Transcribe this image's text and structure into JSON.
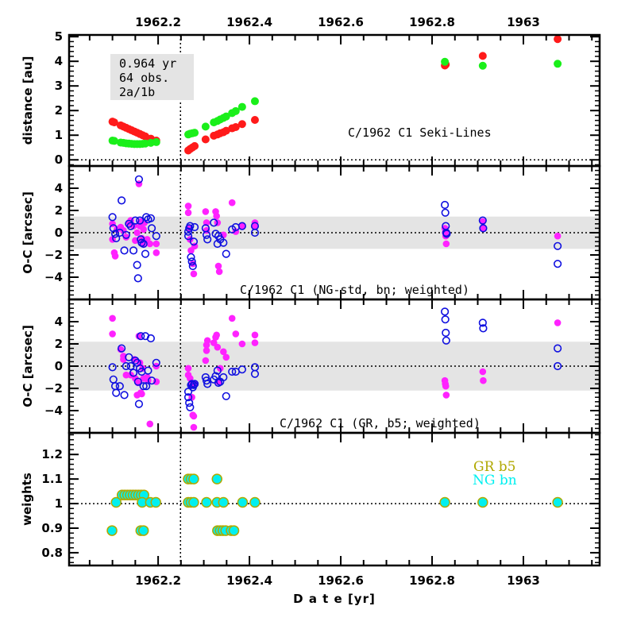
{
  "colors": {
    "red": "#ff1a1a",
    "green": "#1aef1a",
    "magenta": "#ff22ff",
    "blue": "#1010e0",
    "cyan": "#00f0f0",
    "olive": "#b0a800",
    "band": "#e4e4e4"
  },
  "x_axis": {
    "title": "D a t e [yr]",
    "range": [
      1962.005,
      1963.167
    ],
    "tick_labels": [
      "1962.2",
      "1962.4",
      "1962.6",
      "1962.8",
      "1963"
    ],
    "tick_values": [
      1962.2,
      1962.4,
      1962.6,
      1962.8,
      1963.0
    ],
    "minor_step": 0.05,
    "perihelion_line": 1962.249
  },
  "chart_data": [
    {
      "type": "scatter",
      "panel": "distance",
      "ylabel": "distance [au]",
      "ylim": [
        -0.25,
        5.07
      ],
      "yticks": [
        0,
        1,
        2,
        3,
        4,
        5
      ],
      "ytick_labels": [
        "0",
        "1",
        "2",
        "3",
        "4",
        "5"
      ],
      "hline": 0,
      "title": "C/1962 C1 Seki-Lines",
      "info_box": [
        "0.964 yr",
        "64 obs.",
        "2a/1b"
      ],
      "series": [
        {
          "name": "red",
          "x": [
            1962.1,
            1962.104,
            1962.118,
            1962.124,
            1962.13,
            1962.136,
            1962.142,
            1962.148,
            1962.154,
            1962.16,
            1962.166,
            1962.172,
            1962.184,
            1962.196,
            1962.266,
            1962.27,
            1962.275,
            1962.28,
            1962.304,
            1962.322,
            1962.33,
            1962.336,
            1962.343,
            1962.349,
            1962.362,
            1962.37,
            1962.384,
            1962.412,
            1962.828,
            1962.83,
            1962.911,
            1963.075
          ],
          "y": [
            1.55,
            1.52,
            1.4,
            1.35,
            1.3,
            1.25,
            1.2,
            1.15,
            1.1,
            1.05,
            1.0,
            0.95,
            0.86,
            0.78,
            0.38,
            0.44,
            0.5,
            0.56,
            0.83,
            0.98,
            1.03,
            1.08,
            1.12,
            1.18,
            1.28,
            1.33,
            1.45,
            1.62,
            3.83,
            3.87,
            4.22,
            4.9
          ]
        },
        {
          "name": "green",
          "x": [
            1962.1,
            1962.104,
            1962.118,
            1962.124,
            1962.13,
            1962.136,
            1962.142,
            1962.148,
            1962.154,
            1962.16,
            1962.166,
            1962.172,
            1962.184,
            1962.196,
            1962.266,
            1962.27,
            1962.275,
            1962.28,
            1962.304,
            1962.322,
            1962.33,
            1962.336,
            1962.343,
            1962.349,
            1962.362,
            1962.37,
            1962.384,
            1962.412,
            1962.828,
            1962.911,
            1963.075
          ],
          "y": [
            0.78,
            0.77,
            0.7,
            0.69,
            0.67,
            0.66,
            0.65,
            0.64,
            0.64,
            0.64,
            0.65,
            0.66,
            0.69,
            0.72,
            1.03,
            1.06,
            1.08,
            1.1,
            1.35,
            1.52,
            1.58,
            1.64,
            1.7,
            1.76,
            1.9,
            1.98,
            2.15,
            2.38,
            3.98,
            3.82,
            3.9
          ]
        }
      ]
    },
    {
      "type": "scatter",
      "panel": "oc-ng",
      "ylabel": "O-C [arcsec]",
      "ylim": [
        -6,
        6
      ],
      "yticks": [
        -4,
        -2,
        0,
        2,
        4
      ],
      "ytick_labels": [
        "-4",
        "-2",
        "0",
        "2",
        "4"
      ],
      "band": 1.45,
      "hline": 0,
      "title": "C/1962 C1  (NG-std, bn; weighted)",
      "series": [
        {
          "name": "magenta",
          "x": [
            1962.1,
            1962.1,
            1962.104,
            1962.106,
            1962.11,
            1962.118,
            1962.124,
            1962.13,
            1962.136,
            1962.14,
            1962.146,
            1962.15,
            1962.154,
            1962.158,
            1962.16,
            1962.162,
            1962.164,
            1962.166,
            1962.168,
            1962.17,
            1962.176,
            1962.182,
            1962.196,
            1962.196,
            1962.266,
            1962.266,
            1962.268,
            1962.27,
            1962.272,
            1962.276,
            1962.278,
            1962.28,
            1962.304,
            1962.306,
            1962.306,
            1962.326,
            1962.328,
            1962.33,
            1962.332,
            1962.334,
            1962.343,
            1962.362,
            1962.37,
            1962.384,
            1962.412,
            1962.412,
            1962.828,
            1962.829,
            1962.83,
            1962.831,
            1962.911,
            1962.912,
            1963.075
          ],
          "y": [
            0.8,
            -0.6,
            -1.8,
            -2.1,
            0.3,
            0.5,
            0.2,
            -0.4,
            0.9,
            1.1,
            0.6,
            -0.7,
            0.0,
            4.4,
            0.6,
            1.0,
            -0.5,
            -1.0,
            0.3,
            0.9,
            -0.6,
            -1.0,
            -1.0,
            -1.8,
            2.4,
            1.8,
            0.4,
            -0.6,
            -1.6,
            -2.8,
            -3.7,
            -1.2,
            1.9,
            0.9,
            0.2,
            1.9,
            1.5,
            0.9,
            -3.0,
            -3.5,
            -0.2,
            2.7,
            0.1,
            0.6,
            0.6,
            0.9,
            0.4,
            0.0,
            -0.3,
            -1.0,
            1.0,
            0.4,
            -0.3
          ]
        },
        {
          "name": "blue",
          "x": [
            1962.1,
            1962.102,
            1962.106,
            1962.108,
            1962.116,
            1962.12,
            1962.126,
            1962.13,
            1962.136,
            1962.14,
            1962.146,
            1962.15,
            1962.154,
            1962.156,
            1962.158,
            1962.16,
            1962.162,
            1962.164,
            1962.168,
            1962.172,
            1962.174,
            1962.178,
            1962.184,
            1962.186,
            1962.196,
            1962.266,
            1962.266,
            1962.268,
            1962.27,
            1962.272,
            1962.274,
            1962.276,
            1962.278,
            1962.28,
            1962.304,
            1962.306,
            1962.308,
            1962.322,
            1962.326,
            1962.33,
            1962.332,
            1962.336,
            1962.343,
            1962.349,
            1962.362,
            1962.37,
            1962.384,
            1962.412,
            1962.412,
            1962.828,
            1962.829,
            1962.83,
            1962.831,
            1962.832,
            1962.911,
            1962.912,
            1963.075,
            1963.075
          ],
          "y": [
            1.4,
            0.4,
            -0.1,
            -0.5,
            0.0,
            2.9,
            -1.6,
            -0.2,
            0.8,
            0.6,
            -1.6,
            1.1,
            -2.9,
            -4.1,
            4.8,
            1.1,
            -0.6,
            -0.9,
            -1.0,
            -1.9,
            1.4,
            1.2,
            1.3,
            0.4,
            -0.3,
            0.1,
            -0.3,
            0.4,
            0.6,
            -2.2,
            -2.6,
            -3.0,
            -0.8,
            0.5,
            0.4,
            -0.2,
            -0.6,
            0.9,
            -0.1,
            -1.0,
            -0.3,
            -0.6,
            -0.9,
            -1.9,
            0.3,
            0.5,
            0.6,
            0.6,
            0.0,
            2.5,
            1.8,
            0.6,
            0.0,
            -0.1,
            1.1,
            0.4,
            -1.2,
            -2.8
          ]
        }
      ]
    },
    {
      "type": "scatter",
      "panel": "oc-gr",
      "ylabel": "O-C [arcsec]",
      "ylim": [
        -6,
        6
      ],
      "yticks": [
        -4,
        -2,
        0,
        2,
        4
      ],
      "ytick_labels": [
        "-4",
        "-2",
        "0",
        "2",
        "4"
      ],
      "band": 2.2,
      "hline": 0,
      "title": "C/1962 C1  (GR, b5; weighted)",
      "series": [
        {
          "name": "magenta",
          "x": [
            1962.1,
            1962.1,
            1962.118,
            1962.124,
            1962.124,
            1962.13,
            1962.14,
            1962.148,
            1962.15,
            1962.154,
            1962.156,
            1962.158,
            1962.16,
            1962.162,
            1962.164,
            1962.166,
            1962.168,
            1962.176,
            1962.178,
            1962.182,
            1962.196,
            1962.196,
            1962.266,
            1962.266,
            1962.27,
            1962.272,
            1962.274,
            1962.276,
            1962.278,
            1962.278,
            1962.28,
            1962.304,
            1962.306,
            1962.306,
            1962.308,
            1962.322,
            1962.326,
            1962.328,
            1962.33,
            1962.332,
            1962.336,
            1962.343,
            1962.349,
            1962.362,
            1962.37,
            1962.384,
            1962.412,
            1962.412,
            1962.828,
            1962.829,
            1962.83,
            1962.831,
            1962.911,
            1962.912,
            1963.075
          ],
          "y": [
            4.3,
            2.9,
            1.5,
            0.6,
            0.9,
            -0.8,
            -0.8,
            0.6,
            -1.1,
            -2.6,
            -1.5,
            2.7,
            0.3,
            -2.4,
            -2.5,
            -0.2,
            -1.1,
            -1.0,
            -1.3,
            -5.2,
            0.0,
            -1.4,
            -0.2,
            -0.8,
            -1.1,
            -1.7,
            -2.8,
            -4.4,
            -4.5,
            -5.5,
            -1.6,
            0.5,
            1.4,
            1.9,
            2.3,
            2.1,
            2.6,
            2.8,
            1.7,
            -1.4,
            -0.2,
            1.3,
            0.8,
            4.3,
            2.9,
            2.0,
            2.8,
            2.1,
            -1.3,
            -1.6,
            -1.8,
            -2.6,
            -0.5,
            -1.3,
            3.9
          ]
        },
        {
          "name": "blue",
          "x": [
            1962.1,
            1962.102,
            1962.106,
            1962.108,
            1962.116,
            1962.12,
            1962.126,
            1962.13,
            1962.136,
            1962.14,
            1962.146,
            1962.15,
            1962.154,
            1962.156,
            1962.158,
            1962.16,
            1962.162,
            1962.164,
            1962.168,
            1962.172,
            1962.174,
            1962.178,
            1962.184,
            1962.186,
            1962.196,
            1962.266,
            1962.266,
            1962.268,
            1962.27,
            1962.272,
            1962.274,
            1962.276,
            1962.278,
            1962.28,
            1962.304,
            1962.306,
            1962.308,
            1962.322,
            1962.326,
            1962.33,
            1962.332,
            1962.336,
            1962.343,
            1962.349,
            1962.362,
            1962.37,
            1962.384,
            1962.412,
            1962.412,
            1962.828,
            1962.829,
            1962.83,
            1962.831,
            1962.911,
            1962.912,
            1963.075,
            1963.075
          ],
          "y": [
            -0.1,
            -1.2,
            -1.8,
            -2.4,
            -1.8,
            1.6,
            -2.6,
            0.0,
            0.8,
            0.0,
            -0.6,
            0.5,
            0.3,
            -1.4,
            -3.4,
            -0.2,
            2.7,
            -0.5,
            -1.8,
            2.7,
            -1.8,
            -0.4,
            2.5,
            -1.3,
            0.3,
            -2.3,
            -2.8,
            -3.3,
            -3.7,
            -1.7,
            -1.6,
            -1.9,
            -1.7,
            -1.6,
            -1.0,
            -1.3,
            -1.6,
            -1.2,
            -0.9,
            -0.4,
            -1.5,
            -1.4,
            -1.0,
            -2.7,
            -0.5,
            -0.5,
            -0.3,
            -0.1,
            -0.7,
            4.9,
            4.2,
            3.0,
            2.3,
            3.9,
            3.4,
            1.6,
            0.0
          ]
        }
      ]
    },
    {
      "type": "scatter",
      "panel": "weights",
      "ylabel": "weights",
      "ylim": [
        0.748,
        1.288
      ],
      "yticks": [
        0.8,
        0.9,
        1.0,
        1.1,
        1.2
      ],
      "ytick_labels": [
        "0.8",
        "0.9",
        "1",
        "1.1",
        "1.2"
      ],
      "hline": 1,
      "legend": [
        "GR b5",
        "NG bn"
      ],
      "legend_placement": "top-right",
      "series": [
        {
          "name": "weights",
          "x": [
            1962.099,
            1962.108,
            1962.121,
            1962.127,
            1962.133,
            1962.139,
            1962.145,
            1962.151,
            1962.157,
            1962.163,
            1962.169,
            1962.162,
            1962.168,
            1962.165,
            1962.183,
            1962.195,
            1962.266,
            1962.272,
            1962.278,
            1962.266,
            1962.272,
            1962.278,
            1962.306,
            1962.329,
            1962.329,
            1962.343,
            1962.33,
            1962.336,
            1962.342,
            1962.348,
            1962.36,
            1962.366,
            1962.385,
            1962.412,
            1962.828,
            1962.911,
            1963.075
          ],
          "y": [
            0.89,
            1.005,
            1.035,
            1.035,
            1.035,
            1.035,
            1.035,
            1.035,
            1.035,
            1.035,
            1.035,
            0.89,
            0.89,
            1.005,
            1.005,
            1.005,
            1.1,
            1.1,
            1.1,
            1.005,
            1.005,
            1.005,
            1.005,
            1.1,
            1.005,
            1.005,
            0.89,
            0.89,
            0.89,
            0.89,
            0.89,
            0.89,
            1.005,
            1.005,
            1.005,
            1.005,
            1.005
          ]
        }
      ]
    }
  ]
}
